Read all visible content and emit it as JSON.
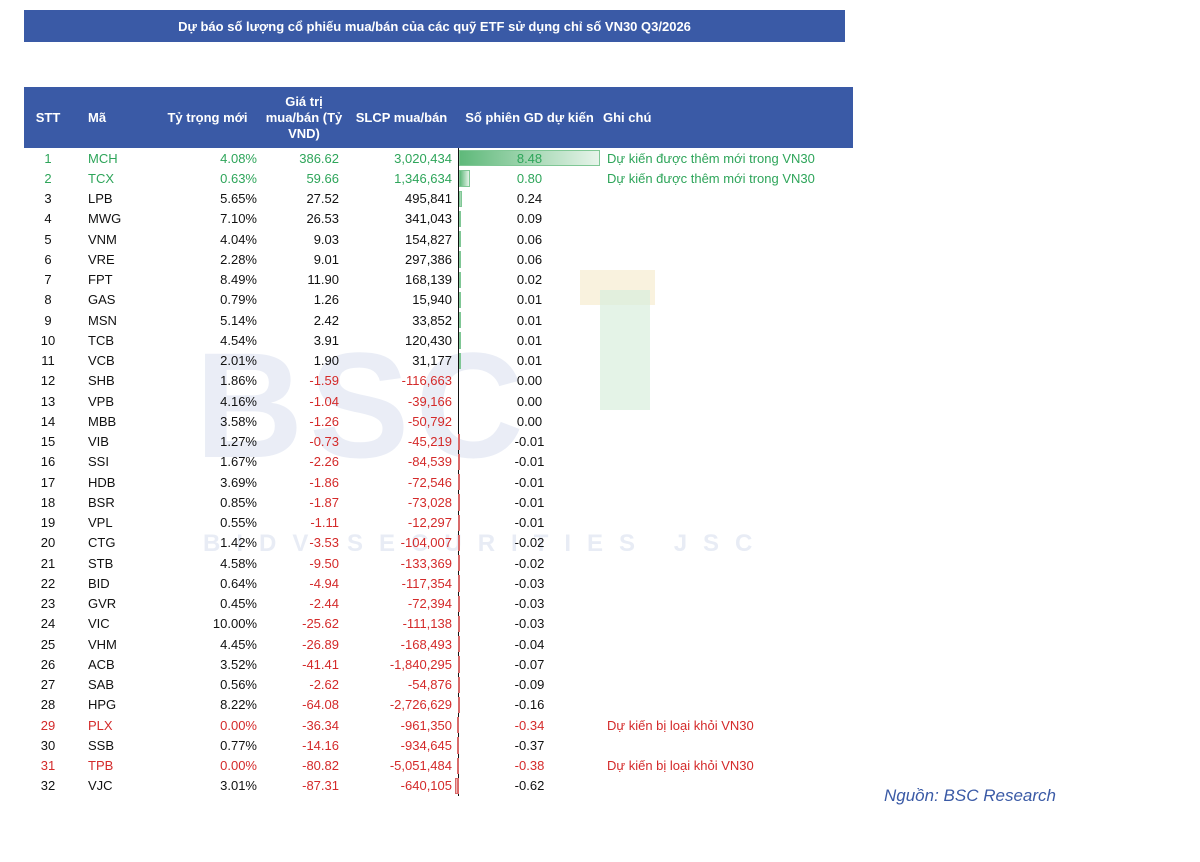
{
  "title": "Dự báo số lượng cổ phiếu mua/bán của các quỹ ETF sử dụng chỉ số VN30 Q3/2026",
  "headers": {
    "stt": "STT",
    "ma": "Mã",
    "ty_trong": "Tỷ trọng mới",
    "gia_tri": "Giá trị mua/bán (Tỷ VND)",
    "slcp": "SLCP mua/bán",
    "so_phien": "Số phiên GD dự kiến",
    "ghi_chu": "Ghi chú"
  },
  "watermark": {
    "brand": "BSC",
    "tagline": "BIDV SECURITIES JSC"
  },
  "source": "Nguồn: BSC Research",
  "rows": [
    {
      "stt": "1",
      "ma": "MCH",
      "ty": "4.08%",
      "gt": "386.62",
      "sl": "3,020,434",
      "so": "8.48",
      "note": "Dự kiến được thêm mới trong VN30",
      "status": "green",
      "v": 8.48
    },
    {
      "stt": "2",
      "ma": "TCX",
      "ty": "0.63%",
      "gt": "59.66",
      "sl": "1,346,634",
      "so": "0.80",
      "note": "Dự kiến được thêm mới trong VN30",
      "status": "green",
      "v": 0.8
    },
    {
      "stt": "3",
      "ma": "LPB",
      "ty": "5.65%",
      "gt": "27.52",
      "sl": "495,841",
      "so": "0.24",
      "note": "",
      "status": "",
      "v": 0.24
    },
    {
      "stt": "4",
      "ma": "MWG",
      "ty": "7.10%",
      "gt": "26.53",
      "sl": "341,043",
      "so": "0.09",
      "note": "",
      "status": "",
      "v": 0.09
    },
    {
      "stt": "5",
      "ma": "VNM",
      "ty": "4.04%",
      "gt": "9.03",
      "sl": "154,827",
      "so": "0.06",
      "note": "",
      "status": "",
      "v": 0.06
    },
    {
      "stt": "6",
      "ma": "VRE",
      "ty": "2.28%",
      "gt": "9.01",
      "sl": "297,386",
      "so": "0.06",
      "note": "",
      "status": "",
      "v": 0.06
    },
    {
      "stt": "7",
      "ma": "FPT",
      "ty": "8.49%",
      "gt": "11.90",
      "sl": "168,139",
      "so": "0.02",
      "note": "",
      "status": "",
      "v": 0.02
    },
    {
      "stt": "8",
      "ma": "GAS",
      "ty": "0.79%",
      "gt": "1.26",
      "sl": "15,940",
      "so": "0.01",
      "note": "",
      "status": "",
      "v": 0.01
    },
    {
      "stt": "9",
      "ma": "MSN",
      "ty": "5.14%",
      "gt": "2.42",
      "sl": "33,852",
      "so": "0.01",
      "note": "",
      "status": "",
      "v": 0.01
    },
    {
      "stt": "10",
      "ma": "TCB",
      "ty": "4.54%",
      "gt": "3.91",
      "sl": "120,430",
      "so": "0.01",
      "note": "",
      "status": "",
      "v": 0.01
    },
    {
      "stt": "11",
      "ma": "VCB",
      "ty": "2.01%",
      "gt": "1.90",
      "sl": "31,177",
      "so": "0.01",
      "note": "",
      "status": "",
      "v": 0.01
    },
    {
      "stt": "12",
      "ma": "SHB",
      "ty": "1.86%",
      "gt": "-1.59",
      "sl": "-116,663",
      "so": "0.00",
      "note": "",
      "status": "",
      "v": 0.0
    },
    {
      "stt": "13",
      "ma": "VPB",
      "ty": "4.16%",
      "gt": "-1.04",
      "sl": "-39,166",
      "so": "0.00",
      "note": "",
      "status": "",
      "v": 0.0
    },
    {
      "stt": "14",
      "ma": "MBB",
      "ty": "3.58%",
      "gt": "-1.26",
      "sl": "-50,792",
      "so": "0.00",
      "note": "",
      "status": "",
      "v": 0.0
    },
    {
      "stt": "15",
      "ma": "VIB",
      "ty": "1.27%",
      "gt": "-0.73",
      "sl": "-45,219",
      "so": "-0.01",
      "note": "",
      "status": "",
      "v": -0.01
    },
    {
      "stt": "16",
      "ma": "SSI",
      "ty": "1.67%",
      "gt": "-2.26",
      "sl": "-84,539",
      "so": "-0.01",
      "note": "",
      "status": "",
      "v": -0.01
    },
    {
      "stt": "17",
      "ma": "HDB",
      "ty": "3.69%",
      "gt": "-1.86",
      "sl": "-72,546",
      "so": "-0.01",
      "note": "",
      "status": "",
      "v": -0.01
    },
    {
      "stt": "18",
      "ma": "BSR",
      "ty": "0.85%",
      "gt": "-1.87",
      "sl": "-73,028",
      "so": "-0.01",
      "note": "",
      "status": "",
      "v": -0.01
    },
    {
      "stt": "19",
      "ma": "VPL",
      "ty": "0.55%",
      "gt": "-1.11",
      "sl": "-12,297",
      "so": "-0.01",
      "note": "",
      "status": "",
      "v": -0.01
    },
    {
      "stt": "20",
      "ma": "CTG",
      "ty": "1.42%",
      "gt": "-3.53",
      "sl": "-104,007",
      "so": "-0.02",
      "note": "",
      "status": "",
      "v": -0.02
    },
    {
      "stt": "21",
      "ma": "STB",
      "ty": "4.58%",
      "gt": "-9.50",
      "sl": "-133,369",
      "so": "-0.02",
      "note": "",
      "status": "",
      "v": -0.02
    },
    {
      "stt": "22",
      "ma": "BID",
      "ty": "0.64%",
      "gt": "-4.94",
      "sl": "-117,354",
      "so": "-0.03",
      "note": "",
      "status": "",
      "v": -0.03
    },
    {
      "stt": "23",
      "ma": "GVR",
      "ty": "0.45%",
      "gt": "-2.44",
      "sl": "-72,394",
      "so": "-0.03",
      "note": "",
      "status": "",
      "v": -0.03
    },
    {
      "stt": "24",
      "ma": "VIC",
      "ty": "10.00%",
      "gt": "-25.62",
      "sl": "-111,138",
      "so": "-0.03",
      "note": "",
      "status": "",
      "v": -0.03
    },
    {
      "stt": "25",
      "ma": "VHM",
      "ty": "4.45%",
      "gt": "-26.89",
      "sl": "-168,493",
      "so": "-0.04",
      "note": "",
      "status": "",
      "v": -0.04
    },
    {
      "stt": "26",
      "ma": "ACB",
      "ty": "3.52%",
      "gt": "-41.41",
      "sl": "-1,840,295",
      "so": "-0.07",
      "note": "",
      "status": "",
      "v": -0.07
    },
    {
      "stt": "27",
      "ma": "SAB",
      "ty": "0.56%",
      "gt": "-2.62",
      "sl": "-54,876",
      "so": "-0.09",
      "note": "",
      "status": "",
      "v": -0.09
    },
    {
      "stt": "28",
      "ma": "HPG",
      "ty": "8.22%",
      "gt": "-64.08",
      "sl": "-2,726,629",
      "so": "-0.16",
      "note": "",
      "status": "",
      "v": -0.16
    },
    {
      "stt": "29",
      "ma": "PLX",
      "ty": "0.00%",
      "gt": "-36.34",
      "sl": "-961,350",
      "so": "-0.34",
      "note": "Dự kiến bị loại khỏi VN30",
      "status": "red",
      "v": -0.34
    },
    {
      "stt": "30",
      "ma": "SSB",
      "ty": "0.77%",
      "gt": "-14.16",
      "sl": "-934,645",
      "so": "-0.37",
      "note": "",
      "status": "",
      "v": -0.37
    },
    {
      "stt": "31",
      "ma": "TPB",
      "ty": "0.00%",
      "gt": "-80.82",
      "sl": "-5,051,484",
      "so": "-0.38",
      "note": "Dự kiến bị loại khỏi VN30",
      "status": "red",
      "v": -0.38
    },
    {
      "stt": "32",
      "ma": "VJC",
      "ty": "3.01%",
      "gt": "-87.31",
      "sl": "-640,105",
      "so": "-0.62",
      "note": "",
      "status": "",
      "v": -0.62
    }
  ]
}
